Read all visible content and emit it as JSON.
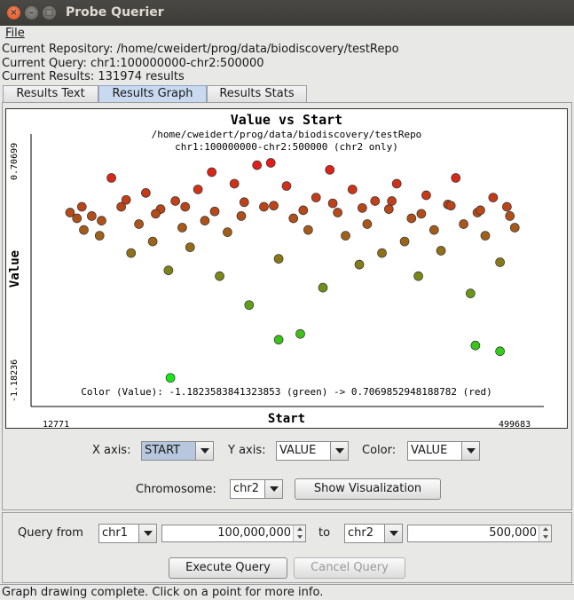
{
  "window": {
    "title": "Probe Querier"
  },
  "menu": {
    "file": "File"
  },
  "info": {
    "repository": "Current Repository: /home/cweidert/prog/data/biodiscovery/testRepo",
    "query": "Current Query: chr1:100000000-chr2:500000",
    "results": "Current Results: 131974 results"
  },
  "tabs": [
    {
      "label": "Results Text"
    },
    {
      "label": "Results Graph"
    },
    {
      "label": "Results Stats"
    }
  ],
  "controls": {
    "x_axis_label": "X axis:",
    "x_axis_value": "START",
    "y_axis_label": "Y axis:",
    "y_axis_value": "VALUE",
    "color_label": "Color:",
    "color_value": "VALUE",
    "chromosome_label": "Chromosome:",
    "chromosome_value": "chr2",
    "show_button": "Show Visualization"
  },
  "query": {
    "from_label": "Query from",
    "from_chrom": "chr1",
    "from_pos": "100,000,000",
    "to_label": "to",
    "to_chrom": "chr2",
    "to_pos": "500,000",
    "execute_button": "Execute Query",
    "cancel_button": "Cancel Query"
  },
  "status": "Graph drawing complete.  Click on a point for more info.",
  "colors": {
    "low": "#19e619",
    "high": "#e61919",
    "selected_tab": "#c9daf0"
  },
  "chart_data": {
    "type": "scatter",
    "title": "Value vs Start",
    "subtitle1": "/home/cweidert/prog/data/biodiscovery/testRepo",
    "subtitle2": "chr1:100000000-chr2:500000 (chr2 only)",
    "xlabel": "Start",
    "ylabel": "Value",
    "xlim": [
      12771,
      499683
    ],
    "ylim": [
      -1.18236,
      0.70699
    ],
    "x_tick_labels": [
      "12771",
      "499683"
    ],
    "y_tick_labels": [
      "-1.18236",
      "0.70699"
    ],
    "color_note": "Color (Value): -1.1823583841323853 (green) -> 0.7069852948188782 (red)",
    "points": [
      [
        38000,
        0.25
      ],
      [
        45000,
        0.2
      ],
      [
        52000,
        0.1
      ],
      [
        60000,
        0.22
      ],
      [
        68000,
        0.05
      ],
      [
        80000,
        0.55
      ],
      [
        90000,
        0.3
      ],
      [
        100000,
        -0.1
      ],
      [
        108000,
        0.15
      ],
      [
        115000,
        0.42
      ],
      [
        122000,
        0.0
      ],
      [
        130000,
        0.28
      ],
      [
        138000,
        -0.25
      ],
      [
        145000,
        0.35
      ],
      [
        152000,
        0.12
      ],
      [
        160000,
        -0.05
      ],
      [
        168000,
        0.45
      ],
      [
        175000,
        0.18
      ],
      [
        182000,
        0.6
      ],
      [
        190000,
        -0.3
      ],
      [
        198000,
        0.08
      ],
      [
        205000,
        0.5
      ],
      [
        212000,
        0.22
      ],
      [
        220000,
        -0.55
      ],
      [
        228000,
        0.66
      ],
      [
        235000,
        0.3
      ],
      [
        242000,
        0.68
      ],
      [
        250000,
        -0.15
      ],
      [
        258000,
        0.48
      ],
      [
        265000,
        0.2
      ],
      [
        272000,
        -0.8
      ],
      [
        280000,
        0.1
      ],
      [
        288000,
        0.38
      ],
      [
        295000,
        -0.4
      ],
      [
        302000,
        0.62
      ],
      [
        310000,
        0.25
      ],
      [
        318000,
        0.05
      ],
      [
        325000,
        0.45
      ],
      [
        332000,
        -0.2
      ],
      [
        340000,
        0.15
      ],
      [
        348000,
        0.35
      ],
      [
        355000,
        -0.1
      ],
      [
        362000,
        0.28
      ],
      [
        370000,
        0.5
      ],
      [
        378000,
        0.0
      ],
      [
        385000,
        0.2
      ],
      [
        392000,
        -0.3
      ],
      [
        400000,
        0.4
      ],
      [
        408000,
        0.1
      ],
      [
        415000,
        -0.08
      ],
      [
        422000,
        0.32
      ],
      [
        430000,
        0.55
      ],
      [
        438000,
        0.15
      ],
      [
        445000,
        -0.45
      ],
      [
        452000,
        0.25
      ],
      [
        460000,
        0.05
      ],
      [
        468000,
        0.38
      ],
      [
        475000,
        -0.18
      ],
      [
        482000,
        0.3
      ],
      [
        490000,
        0.12
      ],
      [
        50000,
        0.3
      ],
      [
        70000,
        0.18
      ],
      [
        95000,
        0.36
      ],
      [
        125000,
        0.24
      ],
      [
        155000,
        0.3
      ],
      [
        185000,
        0.26
      ],
      [
        215000,
        0.34
      ],
      [
        245000,
        0.31
      ],
      [
        275000,
        0.27
      ],
      [
        305000,
        0.33
      ],
      [
        335000,
        0.29
      ],
      [
        365000,
        0.35
      ],
      [
        395000,
        0.24
      ],
      [
        425000,
        0.31
      ],
      [
        455000,
        0.27
      ],
      [
        485000,
        0.22
      ],
      [
        140000,
        -1.18
      ],
      [
        450000,
        -0.9
      ],
      [
        475000,
        -0.95
      ],
      [
        250000,
        -0.85
      ]
    ]
  }
}
